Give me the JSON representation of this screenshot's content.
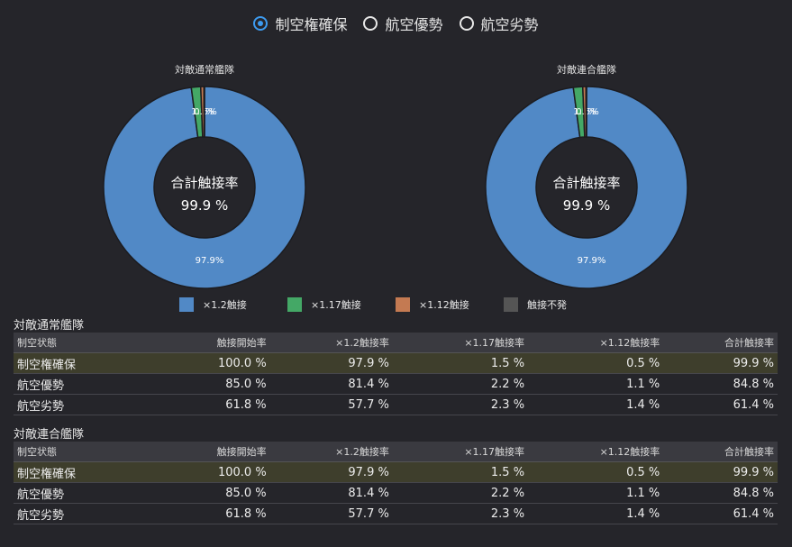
{
  "radio_options": [
    {
      "label": "制空権確保",
      "checked": true
    },
    {
      "label": "航空優勢",
      "checked": false
    },
    {
      "label": "航空劣勢",
      "checked": false
    }
  ],
  "chart_data": [
    {
      "type": "pie",
      "title": "対敵通常艦隊",
      "center_label": "合計触接率",
      "center_value": "99.9 %",
      "categories": [
        "×1.2触接",
        "×1.17触接",
        "×1.12触接",
        "触接不発"
      ],
      "values": [
        97.9,
        1.5,
        0.5,
        0.1
      ],
      "slice_labels": [
        "97.9%",
        "1.5%",
        "0.5%",
        ""
      ],
      "colors": [
        "#5189c6",
        "#44a866",
        "#c47a52",
        "#555555"
      ]
    },
    {
      "type": "pie",
      "title": "対敵連合艦隊",
      "center_label": "合計触接率",
      "center_value": "99.9 %",
      "categories": [
        "×1.2触接",
        "×1.17触接",
        "×1.12触接",
        "触接不発"
      ],
      "values": [
        97.9,
        1.5,
        0.5,
        0.1
      ],
      "slice_labels": [
        "97.9%",
        "1.5%",
        "0.5%",
        ""
      ],
      "colors": [
        "#5189c6",
        "#44a866",
        "#c47a52",
        "#555555"
      ]
    }
  ],
  "legend": [
    {
      "label": "×1.2触接",
      "color": "#5189c6"
    },
    {
      "label": "×1.17触接",
      "color": "#44a866"
    },
    {
      "label": "×1.12触接",
      "color": "#c47a52"
    },
    {
      "label": "触接不発",
      "color": "#555555"
    }
  ],
  "tables": [
    {
      "title": "対敵通常艦隊",
      "headers": [
        "制空状態",
        "触接開始率",
        "×1.2触接率",
        "×1.17触接率",
        "×1.12触接率",
        "合計触接率"
      ],
      "rows": [
        [
          "制空権確保",
          "100.0 %",
          "97.9 %",
          "1.5 %",
          "0.5 %",
          "99.9 %"
        ],
        [
          "航空優勢",
          "85.0 %",
          "81.4 %",
          "2.2 %",
          "1.1 %",
          "84.8 %"
        ],
        [
          "航空劣勢",
          "61.8 %",
          "57.7 %",
          "2.3 %",
          "1.4 %",
          "61.4 %"
        ]
      ]
    },
    {
      "title": "対敵連合艦隊",
      "headers": [
        "制空状態",
        "触接開始率",
        "×1.2触接率",
        "×1.17触接率",
        "×1.12触接率",
        "合計触接率"
      ],
      "rows": [
        [
          "制空権確保",
          "100.0 %",
          "97.9 %",
          "1.5 %",
          "0.5 %",
          "99.9 %"
        ],
        [
          "航空優勢",
          "85.0 %",
          "81.4 %",
          "2.2 %",
          "1.1 %",
          "84.8 %"
        ],
        [
          "航空劣勢",
          "61.8 %",
          "57.7 %",
          "2.3 %",
          "1.4 %",
          "61.4 %"
        ]
      ]
    }
  ]
}
